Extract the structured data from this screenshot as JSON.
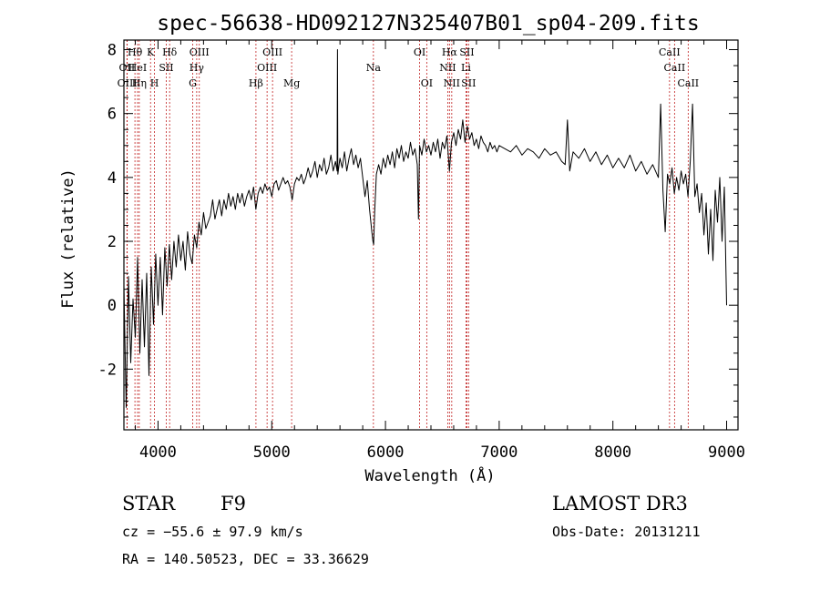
{
  "chart_data": {
    "type": "line",
    "title": "spec-56638-HD092127N325407B01_sp04-209.fits",
    "xlabel": "Wavelength (Å)",
    "ylabel": "Flux (relative)",
    "xlim": [
      3700,
      9100
    ],
    "ylim": [
      -3.9,
      8.3
    ],
    "xticks": [
      4000,
      5000,
      6000,
      7000,
      8000,
      9000
    ],
    "yticks": [
      -2,
      0,
      2,
      4,
      6,
      8
    ],
    "series": [
      {
        "name": "flux",
        "points": [
          [
            3700,
            0.6
          ],
          [
            3720,
            -3.2
          ],
          [
            3740,
            0.9
          ],
          [
            3760,
            -1.8
          ],
          [
            3780,
            0.2
          ],
          [
            3800,
            -1.0
          ],
          [
            3820,
            1.5
          ],
          [
            3840,
            -1.5
          ],
          [
            3860,
            0.8
          ],
          [
            3880,
            -1.3
          ],
          [
            3900,
            1.0
          ],
          [
            3920,
            -2.2
          ],
          [
            3940,
            1.2
          ],
          [
            3960,
            -0.6
          ],
          [
            3980,
            1.6
          ],
          [
            4000,
            0.0
          ],
          [
            4020,
            1.5
          ],
          [
            4040,
            -0.3
          ],
          [
            4060,
            1.8
          ],
          [
            4080,
            0.6
          ],
          [
            4100,
            1.9
          ],
          [
            4120,
            0.8
          ],
          [
            4140,
            2.0
          ],
          [
            4160,
            1.2
          ],
          [
            4180,
            2.2
          ],
          [
            4200,
            1.4
          ],
          [
            4220,
            2.0
          ],
          [
            4240,
            1.1
          ],
          [
            4260,
            2.3
          ],
          [
            4280,
            1.6
          ],
          [
            4300,
            1.3
          ],
          [
            4320,
            2.2
          ],
          [
            4340,
            1.8
          ],
          [
            4360,
            2.6
          ],
          [
            4380,
            2.2
          ],
          [
            4400,
            2.9
          ],
          [
            4420,
            2.4
          ],
          [
            4440,
            2.6
          ],
          [
            4460,
            2.8
          ],
          [
            4480,
            3.3
          ],
          [
            4500,
            2.7
          ],
          [
            4520,
            3.0
          ],
          [
            4540,
            3.3
          ],
          [
            4560,
            2.8
          ],
          [
            4580,
            3.3
          ],
          [
            4600,
            3.0
          ],
          [
            4620,
            3.5
          ],
          [
            4640,
            3.1
          ],
          [
            4660,
            3.4
          ],
          [
            4680,
            3.0
          ],
          [
            4700,
            3.5
          ],
          [
            4720,
            3.2
          ],
          [
            4740,
            3.5
          ],
          [
            4760,
            3.1
          ],
          [
            4780,
            3.4
          ],
          [
            4800,
            3.6
          ],
          [
            4820,
            3.3
          ],
          [
            4840,
            3.7
          ],
          [
            4860,
            3.0
          ],
          [
            4880,
            3.5
          ],
          [
            4900,
            3.7
          ],
          [
            4920,
            3.5
          ],
          [
            4940,
            3.8
          ],
          [
            4960,
            3.6
          ],
          [
            4980,
            3.7
          ],
          [
            5000,
            3.4
          ],
          [
            5020,
            3.8
          ],
          [
            5040,
            3.9
          ],
          [
            5060,
            3.6
          ],
          [
            5080,
            3.8
          ],
          [
            5100,
            4.0
          ],
          [
            5120,
            3.8
          ],
          [
            5140,
            3.9
          ],
          [
            5160,
            3.7
          ],
          [
            5180,
            3.3
          ],
          [
            5200,
            3.8
          ],
          [
            5220,
            4.0
          ],
          [
            5240,
            3.9
          ],
          [
            5260,
            4.1
          ],
          [
            5280,
            3.8
          ],
          [
            5300,
            4.0
          ],
          [
            5320,
            4.3
          ],
          [
            5340,
            4.0
          ],
          [
            5360,
            4.2
          ],
          [
            5380,
            4.5
          ],
          [
            5400,
            4.0
          ],
          [
            5420,
            4.4
          ],
          [
            5440,
            4.2
          ],
          [
            5460,
            4.6
          ],
          [
            5480,
            4.1
          ],
          [
            5500,
            4.3
          ],
          [
            5520,
            4.7
          ],
          [
            5540,
            4.2
          ],
          [
            5560,
            4.5
          ],
          [
            5575,
            4.2
          ],
          [
            5578,
            8.0
          ],
          [
            5581,
            4.1
          ],
          [
            5600,
            4.6
          ],
          [
            5620,
            4.3
          ],
          [
            5640,
            4.8
          ],
          [
            5660,
            4.2
          ],
          [
            5680,
            4.6
          ],
          [
            5700,
            4.9
          ],
          [
            5720,
            4.4
          ],
          [
            5740,
            4.7
          ],
          [
            5760,
            4.3
          ],
          [
            5780,
            4.6
          ],
          [
            5800,
            4.0
          ],
          [
            5820,
            3.4
          ],
          [
            5840,
            3.9
          ],
          [
            5860,
            3.0
          ],
          [
            5880,
            2.3
          ],
          [
            5890,
            2.0
          ],
          [
            5896,
            1.9
          ],
          [
            5905,
            2.9
          ],
          [
            5920,
            4.1
          ],
          [
            5940,
            4.4
          ],
          [
            5960,
            4.1
          ],
          [
            5980,
            4.6
          ],
          [
            6000,
            4.3
          ],
          [
            6020,
            4.7
          ],
          [
            6040,
            4.4
          ],
          [
            6060,
            4.8
          ],
          [
            6080,
            4.3
          ],
          [
            6100,
            4.9
          ],
          [
            6120,
            4.6
          ],
          [
            6140,
            5.0
          ],
          [
            6160,
            4.5
          ],
          [
            6180,
            4.8
          ],
          [
            6200,
            4.6
          ],
          [
            6220,
            5.1
          ],
          [
            6240,
            4.7
          ],
          [
            6260,
            4.9
          ],
          [
            6280,
            4.4
          ],
          [
            6290,
            2.7
          ],
          [
            6300,
            5.0
          ],
          [
            6320,
            4.7
          ],
          [
            6340,
            5.2
          ],
          [
            6360,
            4.8
          ],
          [
            6380,
            5.0
          ],
          [
            6400,
            4.7
          ],
          [
            6420,
            5.1
          ],
          [
            6440,
            4.8
          ],
          [
            6460,
            5.2
          ],
          [
            6480,
            4.6
          ],
          [
            6500,
            5.1
          ],
          [
            6520,
            4.9
          ],
          [
            6540,
            5.3
          ],
          [
            6563,
            4.2
          ],
          [
            6580,
            5.1
          ],
          [
            6600,
            5.4
          ],
          [
            6620,
            5.0
          ],
          [
            6640,
            5.5
          ],
          [
            6660,
            5.2
          ],
          [
            6680,
            5.8
          ],
          [
            6700,
            5.1
          ],
          [
            6720,
            5.6
          ],
          [
            6740,
            5.2
          ],
          [
            6760,
            5.4
          ],
          [
            6780,
            5.0
          ],
          [
            6800,
            5.2
          ],
          [
            6820,
            4.9
          ],
          [
            6840,
            5.3
          ],
          [
            6860,
            5.1
          ],
          [
            6880,
            5.0
          ],
          [
            6900,
            4.8
          ],
          [
            6920,
            5.1
          ],
          [
            6940,
            4.9
          ],
          [
            6960,
            5.0
          ],
          [
            6980,
            4.8
          ],
          [
            7000,
            5.0
          ],
          [
            7050,
            4.9
          ],
          [
            7100,
            4.8
          ],
          [
            7150,
            5.0
          ],
          [
            7200,
            4.7
          ],
          [
            7250,
            4.9
          ],
          [
            7300,
            4.8
          ],
          [
            7350,
            4.6
          ],
          [
            7400,
            4.9
          ],
          [
            7450,
            4.7
          ],
          [
            7500,
            4.8
          ],
          [
            7550,
            4.5
          ],
          [
            7580,
            4.4
          ],
          [
            7600,
            5.8
          ],
          [
            7620,
            4.2
          ],
          [
            7650,
            4.8
          ],
          [
            7700,
            4.6
          ],
          [
            7750,
            4.9
          ],
          [
            7800,
            4.5
          ],
          [
            7850,
            4.8
          ],
          [
            7900,
            4.4
          ],
          [
            7950,
            4.7
          ],
          [
            8000,
            4.3
          ],
          [
            8050,
            4.6
          ],
          [
            8100,
            4.3
          ],
          [
            8150,
            4.7
          ],
          [
            8200,
            4.2
          ],
          [
            8250,
            4.5
          ],
          [
            8300,
            4.1
          ],
          [
            8350,
            4.4
          ],
          [
            8400,
            4.0
          ],
          [
            8420,
            6.3
          ],
          [
            8440,
            3.6
          ],
          [
            8460,
            2.3
          ],
          [
            8480,
            4.1
          ],
          [
            8500,
            3.8
          ],
          [
            8520,
            4.3
          ],
          [
            8540,
            3.5
          ],
          [
            8560,
            4.0
          ],
          [
            8580,
            3.6
          ],
          [
            8600,
            4.2
          ],
          [
            8620,
            3.8
          ],
          [
            8640,
            4.1
          ],
          [
            8660,
            3.4
          ],
          [
            8680,
            4.5
          ],
          [
            8700,
            6.3
          ],
          [
            8720,
            3.4
          ],
          [
            8740,
            3.8
          ],
          [
            8760,
            2.9
          ],
          [
            8780,
            3.5
          ],
          [
            8800,
            2.2
          ],
          [
            8820,
            3.2
          ],
          [
            8840,
            1.6
          ],
          [
            8860,
            3.0
          ],
          [
            8880,
            1.4
          ],
          [
            8900,
            3.6
          ],
          [
            8920,
            2.6
          ],
          [
            8940,
            4.0
          ],
          [
            8960,
            2.0
          ],
          [
            8980,
            3.7
          ],
          [
            9000,
            0.0
          ]
        ]
      }
    ],
    "lines": [
      {
        "label": "Hθ",
        "wave": 3797,
        "row": 1
      },
      {
        "label": "OII",
        "wave": 3727,
        "row": 2
      },
      {
        "label": "OIII",
        "wave": 3729,
        "row": 3
      },
      {
        "label": "HeI",
        "wave": 3820,
        "row": 2
      },
      {
        "label": "Hη",
        "wave": 3835,
        "row": 3
      },
      {
        "label": "K",
        "wave": 3934,
        "row": 1
      },
      {
        "label": "H",
        "wave": 3969,
        "row": 3
      },
      {
        "label": "SII",
        "wave": 4072,
        "row": 2
      },
      {
        "label": "Hδ",
        "wave": 4102,
        "row": 1
      },
      {
        "label": "OIII",
        "wave": 4363,
        "row": 1
      },
      {
        "label": "Hγ",
        "wave": 4340,
        "row": 2
      },
      {
        "label": "G",
        "wave": 4305,
        "row": 3
      },
      {
        "label": "Hβ",
        "wave": 4861,
        "row": 3
      },
      {
        "label": "OIII",
        "wave": 4959,
        "row": 2
      },
      {
        "label": "OIII",
        "wave": 5007,
        "row": 1
      },
      {
        "label": "Mg",
        "wave": 5175,
        "row": 3
      },
      {
        "label": "Na",
        "wave": 5894,
        "row": 2
      },
      {
        "label": "OI",
        "wave": 6300,
        "row": 1
      },
      {
        "label": "OI",
        "wave": 6363,
        "row": 3
      },
      {
        "label": "Hα",
        "wave": 6563,
        "row": 1
      },
      {
        "label": "NII",
        "wave": 6548,
        "row": 2
      },
      {
        "label": "NII",
        "wave": 6583,
        "row": 3
      },
      {
        "label": "SII",
        "wave": 6716,
        "row": 1
      },
      {
        "label": "Li",
        "wave": 6708,
        "row": 2
      },
      {
        "label": "SII",
        "wave": 6731,
        "row": 3
      },
      {
        "label": "CaII",
        "wave": 8498,
        "row": 1
      },
      {
        "label": "CaII",
        "wave": 8542,
        "row": 2
      },
      {
        "label": "CaII",
        "wave": 8662,
        "row": 3
      }
    ]
  },
  "info": {
    "class": "STAR",
    "subclass": "F9",
    "survey": "LAMOST DR3",
    "redshift": "cz = −55.6 ± 97.9 km/s",
    "obs_date": "Obs-Date: 20131211",
    "coords": "RA = 140.50523, DEC =  33.36629"
  },
  "colors": {
    "line_marker": "#c02020",
    "spectrum": "#000000"
  }
}
